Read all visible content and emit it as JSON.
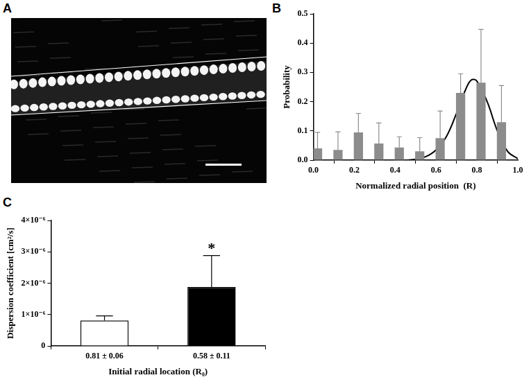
{
  "image": {
    "panel": "A"
  },
  "chart_data": [
    {
      "panel": "B",
      "type": "bar",
      "x_label": "Normalized radial position  (R)",
      "y_label": "Probability",
      "xlim": [
        0,
        1
      ],
      "xticks": [
        {
          "value": 0,
          "label": "0.0"
        },
        0.2,
        0.4,
        0.6,
        0.8,
        {
          "value": 1,
          "label": "1.0"
        }
      ],
      "ylim": [
        0,
        0.5
      ],
      "yticks": [
        {
          "value": 0,
          "label": "0.0"
        },
        0.1,
        0.2,
        0.3,
        0.4,
        0.5
      ],
      "grid": false,
      "series": [
        {
          "type": "bar",
          "color": "#8c8c8c",
          "x": [
            0.02,
            0.12,
            0.22,
            0.32,
            0.42,
            0.52,
            0.62,
            0.72,
            0.82,
            0.92
          ],
          "values": [
            0.04,
            0.035,
            0.095,
            0.057,
            0.043,
            0.03,
            0.075,
            0.23,
            0.265,
            0.13
          ],
          "errors": [
            0.055,
            0.062,
            0.065,
            0.07,
            0.037,
            0.047,
            0.093,
            0.065,
            0.182,
            0.125
          ]
        },
        {
          "type": "line",
          "color": "#000000",
          "x": [
            0.45,
            0.5,
            0.55,
            0.6,
            0.65,
            0.7,
            0.75,
            0.775,
            0.8,
            0.85,
            0.9,
            0.95,
            1.0
          ],
          "values": [
            0.0,
            0.003,
            0.012,
            0.035,
            0.08,
            0.16,
            0.25,
            0.275,
            0.27,
            0.2,
            0.1,
            0.03,
            0.005
          ]
        }
      ]
    },
    {
      "panel": "C",
      "type": "bar",
      "x_label": "Initial radial location (R₀)",
      "y_label": "Dispersion coefficient [cm²/s]",
      "categories": [
        "0.81 ± 0.06",
        "0.58 ± 0.11"
      ],
      "values": [
        8.1e-07,
        1.88e-06
      ],
      "errors": [
        1.5e-07,
        1e-06
      ],
      "colors": [
        "#ffffff",
        "#000000"
      ],
      "ylim": [
        0,
        4e-06
      ],
      "yticks": [
        0,
        {
          "value": 1e-06,
          "label": "1×10⁻⁶"
        },
        {
          "value": 2e-06,
          "label": "2×10⁻⁶"
        },
        {
          "value": 3e-06,
          "label": "3×10⁻⁶"
        },
        {
          "value": 4e-06,
          "label": "4×10⁻⁶"
        }
      ],
      "grid": false,
      "annotations": [
        {
          "category": "0.58 ± 0.11",
          "text": "*"
        }
      ]
    }
  ]
}
